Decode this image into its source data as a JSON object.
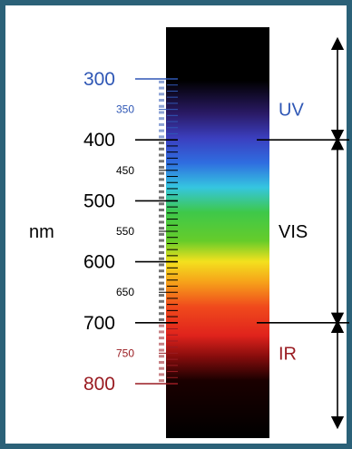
{
  "unit_label": "nm",
  "colors": {
    "border": "#2b6178",
    "uv": "#2f57b5",
    "ir": "#9a1c22",
    "visible": "#000000",
    "strip": "#000000"
  },
  "scale": {
    "major_ticks": [
      {
        "value": 300,
        "label": "300",
        "zone": "uv"
      },
      {
        "value": 400,
        "label": "400",
        "zone": "visible"
      },
      {
        "value": 500,
        "label": "500",
        "zone": "visible"
      },
      {
        "value": 600,
        "label": "600",
        "zone": "visible"
      },
      {
        "value": 700,
        "label": "700",
        "zone": "visible"
      },
      {
        "value": 800,
        "label": "800",
        "zone": "ir"
      }
    ],
    "minor_labels": [
      {
        "value": 350,
        "label": "350",
        "zone": "uv"
      },
      {
        "value": 450,
        "label": "450",
        "zone": "visible"
      },
      {
        "value": 550,
        "label": "550",
        "zone": "visible"
      },
      {
        "value": 650,
        "label": "650",
        "zone": "visible"
      },
      {
        "value": 750,
        "label": "750",
        "zone": "ir"
      }
    ]
  },
  "regions": [
    {
      "label": "UV",
      "from": 300,
      "to": 400,
      "zone": "uv"
    },
    {
      "label": "VIS",
      "from": 400,
      "to": 700,
      "zone": "visible"
    },
    {
      "label": "IR",
      "from": 700,
      "to": 800,
      "zone": "ir"
    }
  ]
}
